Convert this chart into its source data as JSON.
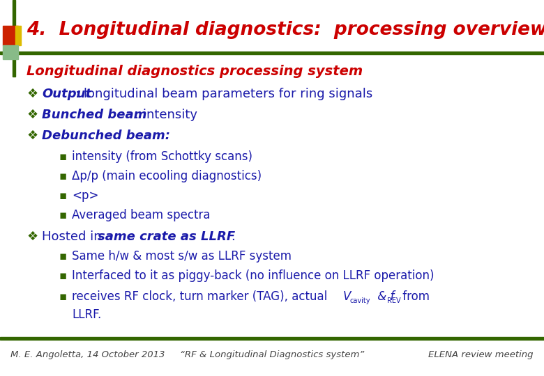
{
  "title": "4.  Longitudinal diagnostics:  processing overview",
  "title_color": "#CC0000",
  "title_fontsize": 19,
  "bg_color": "#FFFFFF",
  "section_header": "Longitudinal diagnostics processing system",
  "section_header_color": "#CC0000",
  "section_header_fontsize": 14,
  "bullet_color": "#1a1aaa",
  "bold_color": "#1a1aaa",
  "sub_bullet_color": "#1a1aaa",
  "green_bullet": "#336600",
  "bullet_fontsize": 13,
  "sub_bullet_fontsize": 12,
  "footer_color": "#444444",
  "footer_fontsize": 9.5,
  "footer_left": "M. E. Angoletta, 14 October 2013",
  "footer_center": "“RF & Longitudinal Diagnostics system”",
  "footer_right": "ELENA review meeting",
  "left_bar_red": "#CC2200",
  "left_bar_yellow": "#DDBB00",
  "left_bar_green": "#336600",
  "bar_green": "#336600"
}
